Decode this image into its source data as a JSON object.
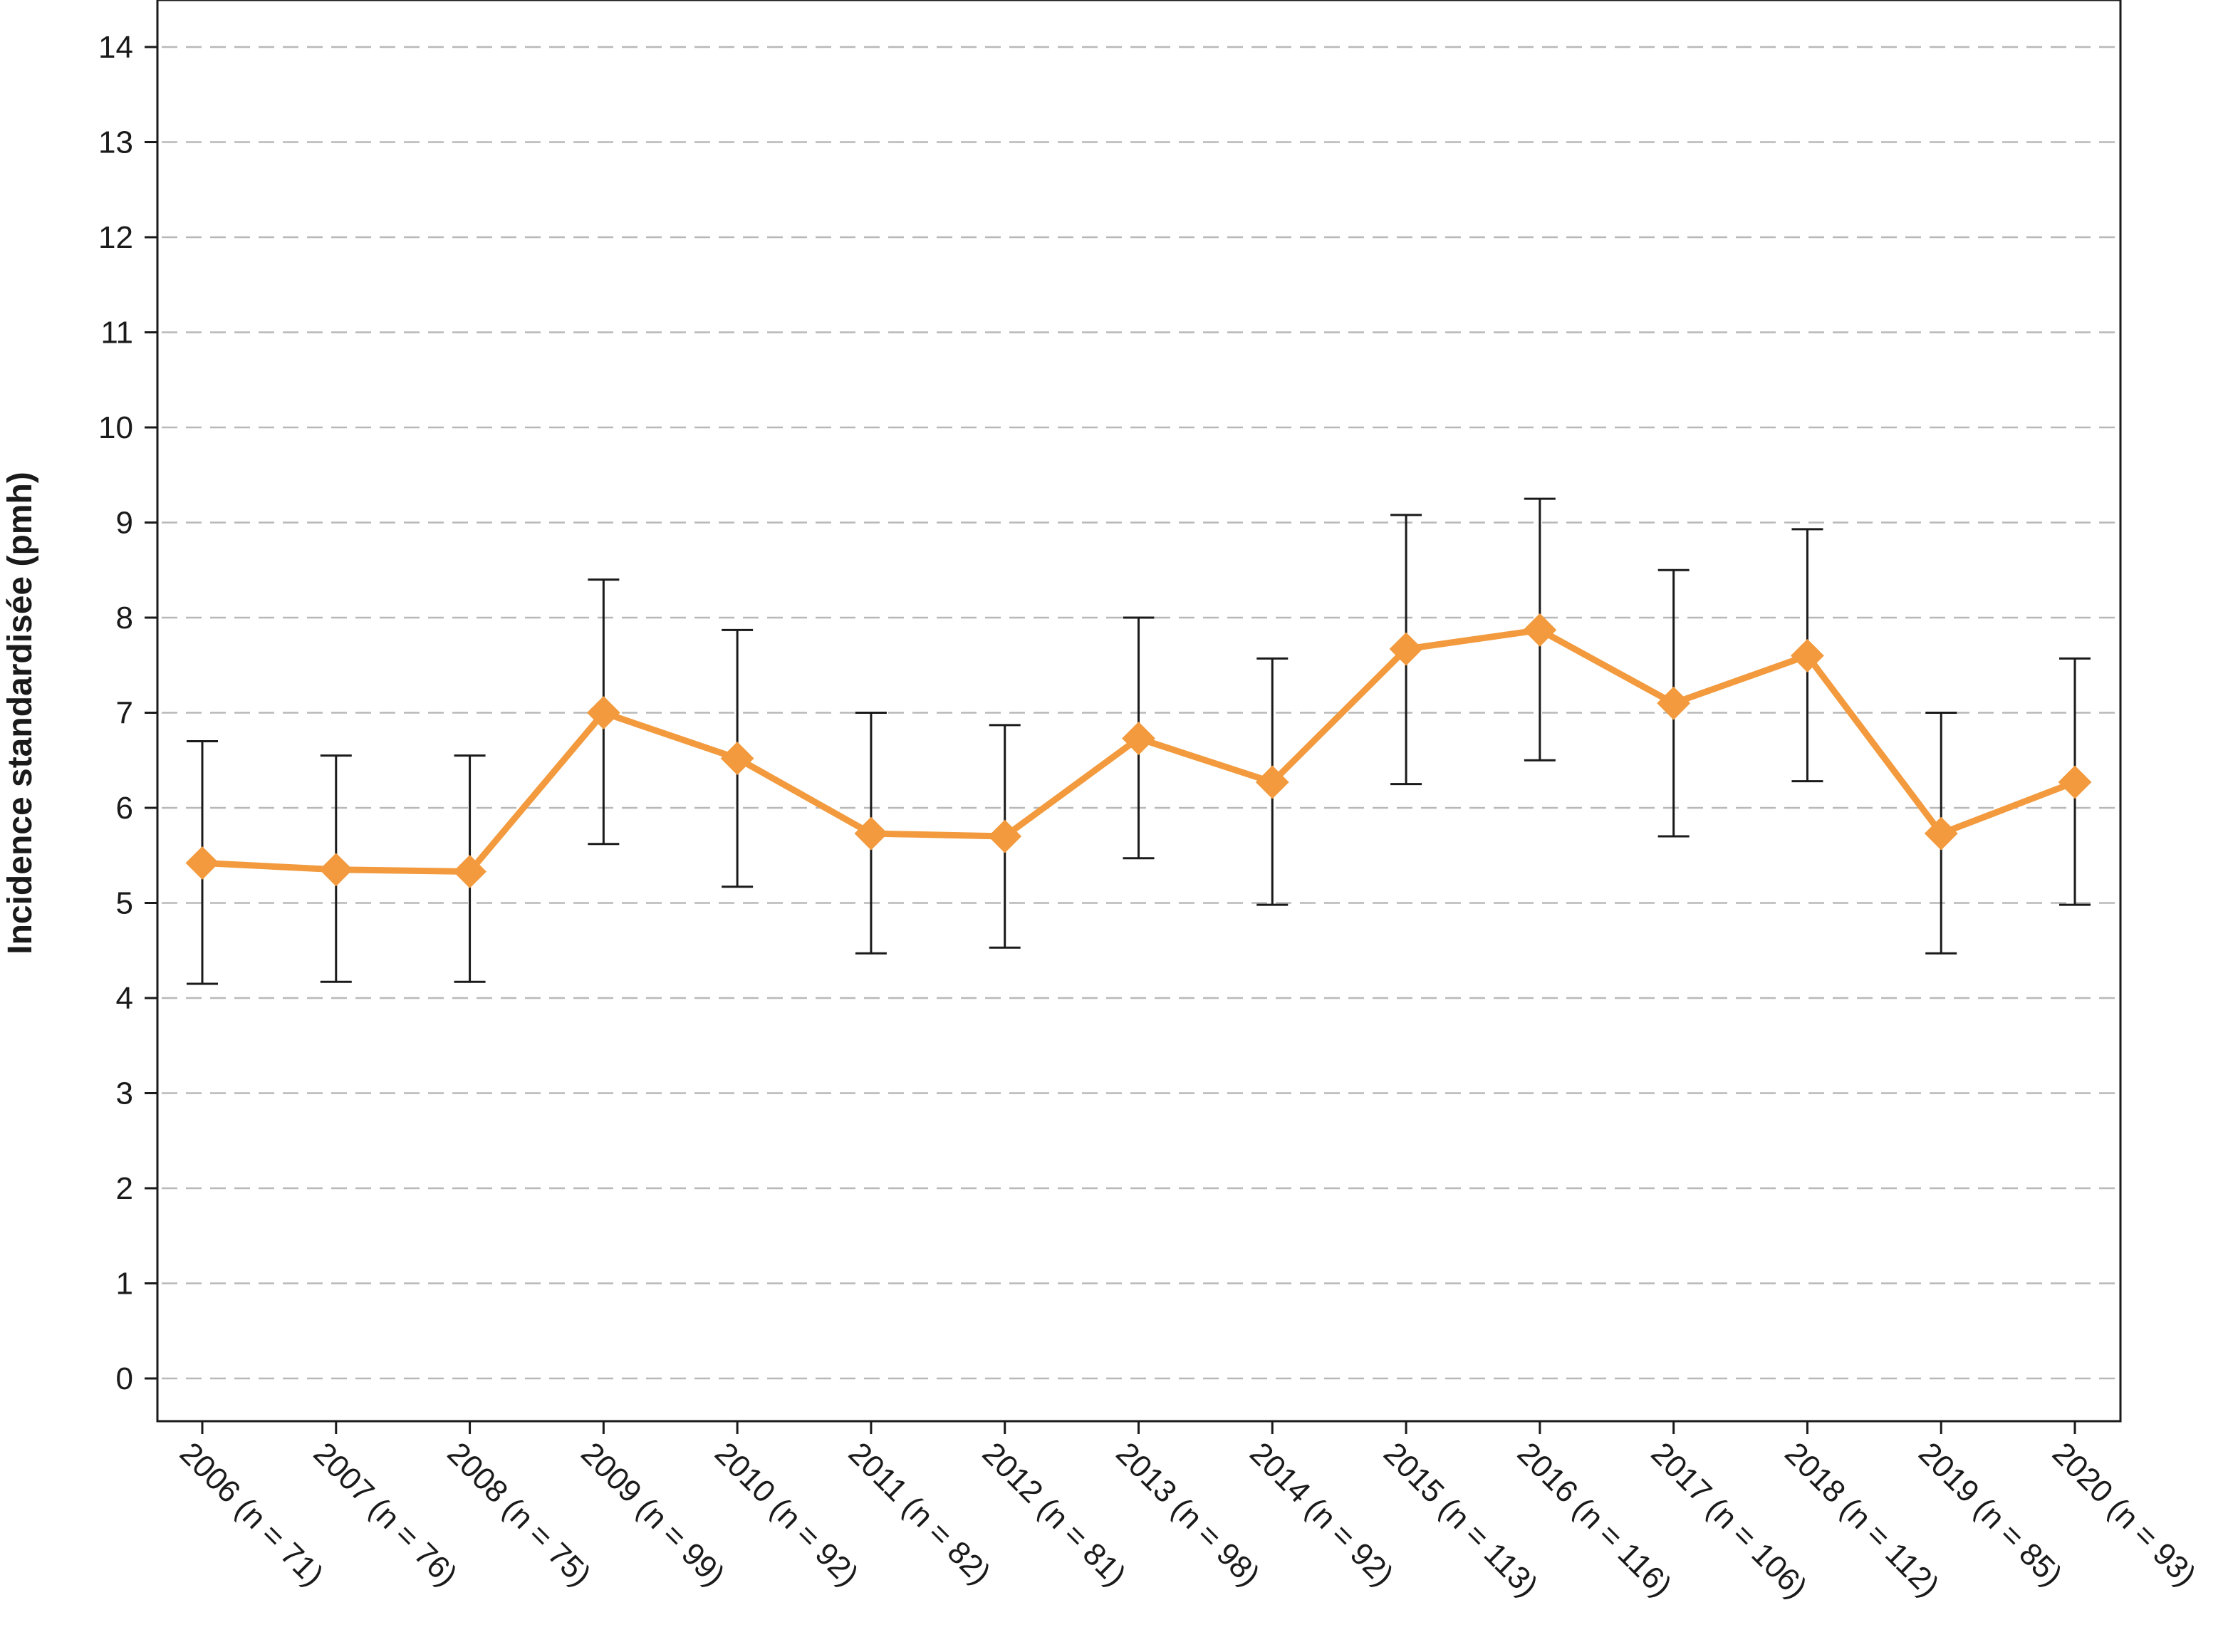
{
  "chart_data": {
    "type": "line",
    "title": "",
    "xlabel": "",
    "ylabel": "Incidence standardisée (pmh)",
    "ylim": [
      0,
      14
    ],
    "yticks": [
      "0",
      "1",
      "2",
      "3",
      "4",
      "5",
      "6",
      "7",
      "8",
      "9",
      "10",
      "11",
      "12",
      "13",
      "14"
    ],
    "grid": "horizontal dashed",
    "legend": "none",
    "categories": [
      "2006 (n = 71)",
      "2007 (n = 76)",
      "2008 (n = 75)",
      "2009 (n = 99)",
      "2010 (n = 92)",
      "2011 (n = 82)",
      "2012 (n = 81)",
      "2013 (n = 98)",
      "2014 (n = 92)",
      "2015 (n = 113)",
      "2016 (n = 116)",
      "2017 (n = 106)",
      "2018 (n = 112)",
      "2019 (n = 85)",
      "2020 (n = 93)"
    ],
    "series": [
      {
        "values": [
          5.42,
          5.35,
          5.33,
          7.0,
          6.52,
          5.73,
          5.7,
          6.73,
          6.27,
          7.67,
          7.87,
          7.1,
          7.6,
          5.73,
          6.27
        ],
        "lower": [
          4.15,
          4.17,
          4.17,
          5.62,
          5.17,
          4.47,
          4.53,
          5.47,
          4.98,
          6.25,
          6.5,
          5.7,
          6.28,
          4.47,
          4.98
        ],
        "upper": [
          6.7,
          6.55,
          6.55,
          8.4,
          7.87,
          7.0,
          6.87,
          8.0,
          7.57,
          9.08,
          9.25,
          8.5,
          8.93,
          7.0,
          7.57
        ],
        "color": "#f29a3d",
        "marker": "diamond"
      }
    ],
    "colors": {
      "line": "#f29a3d",
      "error_bar": "#1a1a1a",
      "grid": "#b8b8b8",
      "axis": "#1a1a1a"
    }
  }
}
